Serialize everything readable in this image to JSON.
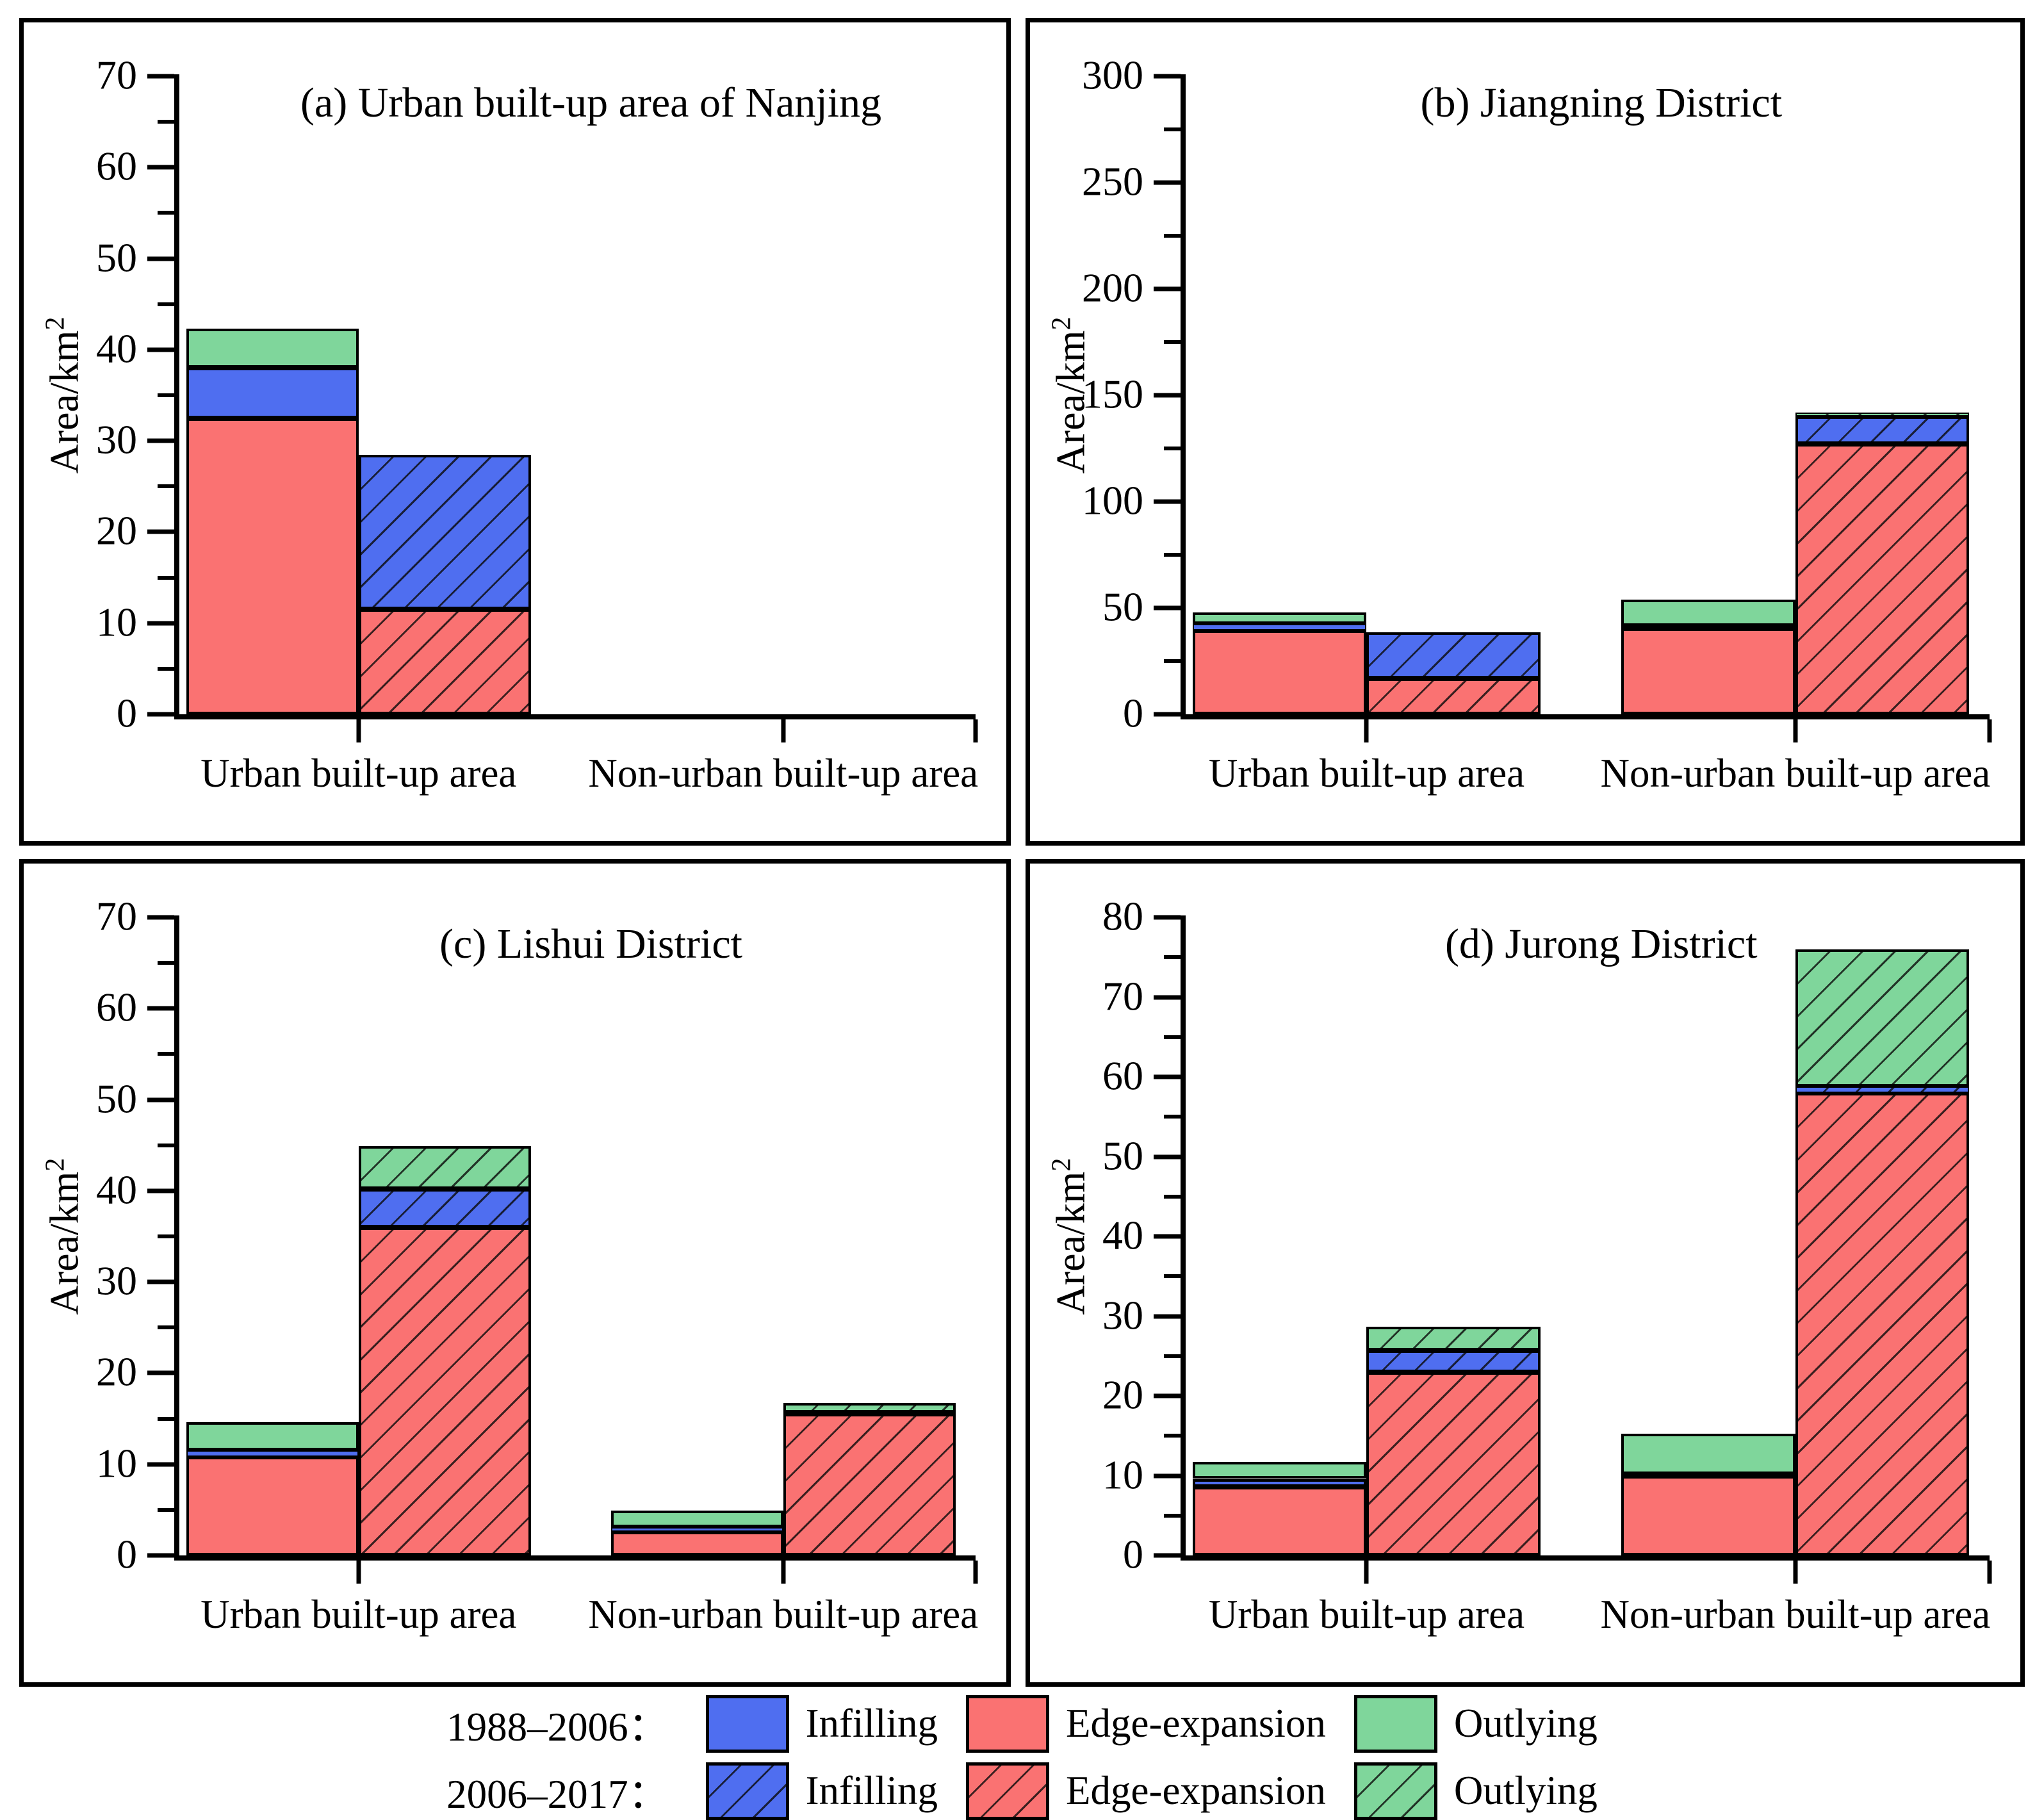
{
  "colors": {
    "infilling": "#4F6EF0",
    "edge_expansion": "#FA7272",
    "outlying": "#7FD69B",
    "axis": "#000000"
  },
  "legend": {
    "rows": [
      {
        "period": "1988–2006：",
        "hatched": false,
        "items": [
          {
            "label": "Infilling",
            "color": "#4F6EF0"
          },
          {
            "label": "Edge-expansion",
            "color": "#FA7272"
          },
          {
            "label": "Outlying",
            "color": "#7FD69B"
          }
        ]
      },
      {
        "period": "2006–2017：",
        "hatched": true,
        "items": [
          {
            "label": "Infilling",
            "color": "#4F6EF0"
          },
          {
            "label": "Edge-expansion",
            "color": "#FA7272"
          },
          {
            "label": "Outlying",
            "color": "#7FD69B"
          }
        ]
      }
    ]
  },
  "chart_data": {
    "type": "bar",
    "stacked": true,
    "stack_order": [
      "edge_expansion",
      "infilling",
      "outlying"
    ],
    "series_periods": [
      "1988–2006",
      "2006–2017"
    ],
    "categories": [
      "Urban built-up area",
      "Non-urban built-up area"
    ],
    "ylabel": "Area/km²",
    "ylabel_base": "Area/km",
    "ylabel_sup": "2",
    "grid": false,
    "legend_position": "bottom",
    "layout": {
      "group_centers_pct": [
        23,
        76
      ],
      "bar_width_pct": 21.5
    },
    "panels": [
      {
        "id": "a",
        "title": "(a) Urban built-up area of Nanjing",
        "ylim": [
          0,
          70
        ],
        "ytick_step": 10,
        "yminor_step": 5,
        "yticks": [
          0,
          10,
          20,
          30,
          40,
          50,
          60,
          70
        ],
        "groups": [
          {
            "category": "Urban built-up area",
            "bars": [
              {
                "period": "1988–2006",
                "hatched": false,
                "segments": {
                  "edge_expansion": 32.5,
                  "infilling": 5.5,
                  "outlying": 4.3
                },
                "total": 42.3
              },
              {
                "period": "2006–2017",
                "hatched": true,
                "segments": {
                  "edge_expansion": 11.5,
                  "infilling": 17.0,
                  "outlying": 0
                },
                "total": 28.5
              }
            ]
          },
          {
            "category": "Non-urban built-up area",
            "bars": [
              {
                "period": "1988–2006",
                "hatched": false,
                "segments": {
                  "edge_expansion": 0,
                  "infilling": 0,
                  "outlying": 0
                },
                "total": 0
              },
              {
                "period": "2006–2017",
                "hatched": true,
                "segments": {
                  "edge_expansion": 0,
                  "infilling": 0,
                  "outlying": 0
                },
                "total": 0
              }
            ]
          }
        ]
      },
      {
        "id": "b",
        "title": "(b) Jiangning District",
        "ylim": [
          0,
          300
        ],
        "ytick_step": 50,
        "yminor_step": 25,
        "yticks": [
          0,
          50,
          100,
          150,
          200,
          250,
          300
        ],
        "groups": [
          {
            "category": "Urban built-up area",
            "bars": [
              {
                "period": "1988–2006",
                "hatched": false,
                "segments": {
                  "edge_expansion": 39.5,
                  "infilling": 3.0,
                  "outlying": 5.5
                },
                "total": 48.0
              },
              {
                "period": "2006–2017",
                "hatched": true,
                "segments": {
                  "edge_expansion": 17.0,
                  "infilling": 21.5,
                  "outlying": 0
                },
                "total": 38.5
              }
            ]
          },
          {
            "category": "Non-urban built-up area",
            "bars": [
              {
                "period": "1988–2006",
                "hatched": false,
                "segments": {
                  "edge_expansion": 40.5,
                  "infilling": 1.0,
                  "outlying": 12.5
                },
                "total": 54.0
              },
              {
                "period": "2006–2017",
                "hatched": true,
                "segments": {
                  "edge_expansion": 127.0,
                  "infilling": 13.0,
                  "outlying": 2.0
                },
                "total": 142.0
              }
            ]
          }
        ]
      },
      {
        "id": "c",
        "title": "(c) Lishui  District",
        "ylim": [
          0,
          70
        ],
        "ytick_step": 10,
        "yminor_step": 5,
        "yticks": [
          0,
          10,
          20,
          30,
          40,
          50,
          60,
          70
        ],
        "groups": [
          {
            "category": "Urban built-up area",
            "bars": [
              {
                "period": "1988–2006",
                "hatched": false,
                "segments": {
                  "edge_expansion": 10.8,
                  "infilling": 0.7,
                  "outlying": 3.1
                },
                "total": 14.6
              },
              {
                "period": "2006–2017",
                "hatched": true,
                "segments": {
                  "edge_expansion": 36.0,
                  "infilling": 4.2,
                  "outlying": 4.7
                },
                "total": 44.9
              }
            ]
          },
          {
            "category": "Non-urban built-up area",
            "bars": [
              {
                "period": "1988–2006",
                "hatched": false,
                "segments": {
                  "edge_expansion": 2.6,
                  "infilling": 0.5,
                  "outlying": 1.8
                },
                "total": 4.9
              },
              {
                "period": "2006–2017",
                "hatched": true,
                "segments": {
                  "edge_expansion": 15.5,
                  "infilling": 0.2,
                  "outlying": 1.0
                },
                "total": 16.7
              }
            ]
          }
        ]
      },
      {
        "id": "d",
        "title": "(d) Jurong  District",
        "ylim": [
          0,
          80
        ],
        "ytick_step": 10,
        "yminor_step": 5,
        "yticks": [
          0,
          10,
          20,
          30,
          40,
          50,
          60,
          70,
          80
        ],
        "groups": [
          {
            "category": "Urban built-up area",
            "bars": [
              {
                "period": "1988–2006",
                "hatched": false,
                "segments": {
                  "edge_expansion": 8.6,
                  "infilling": 1.0,
                  "outlying": 2.1
                },
                "total": 11.7
              },
              {
                "period": "2006–2017",
                "hatched": true,
                "segments": {
                  "edge_expansion": 23.0,
                  "infilling": 2.7,
                  "outlying": 3.0
                },
                "total": 28.7
              }
            ]
          },
          {
            "category": "Non-urban built-up area",
            "bars": [
              {
                "period": "1988–2006",
                "hatched": false,
                "segments": {
                  "edge_expansion": 10.0,
                  "infilling": 0.2,
                  "outlying": 5.1
                },
                "total": 15.3
              },
              {
                "period": "2006–2017",
                "hatched": true,
                "segments": {
                  "edge_expansion": 58.0,
                  "infilling": 0.8,
                  "outlying": 17.2
                },
                "total": 76.0
              }
            ]
          }
        ]
      }
    ]
  }
}
